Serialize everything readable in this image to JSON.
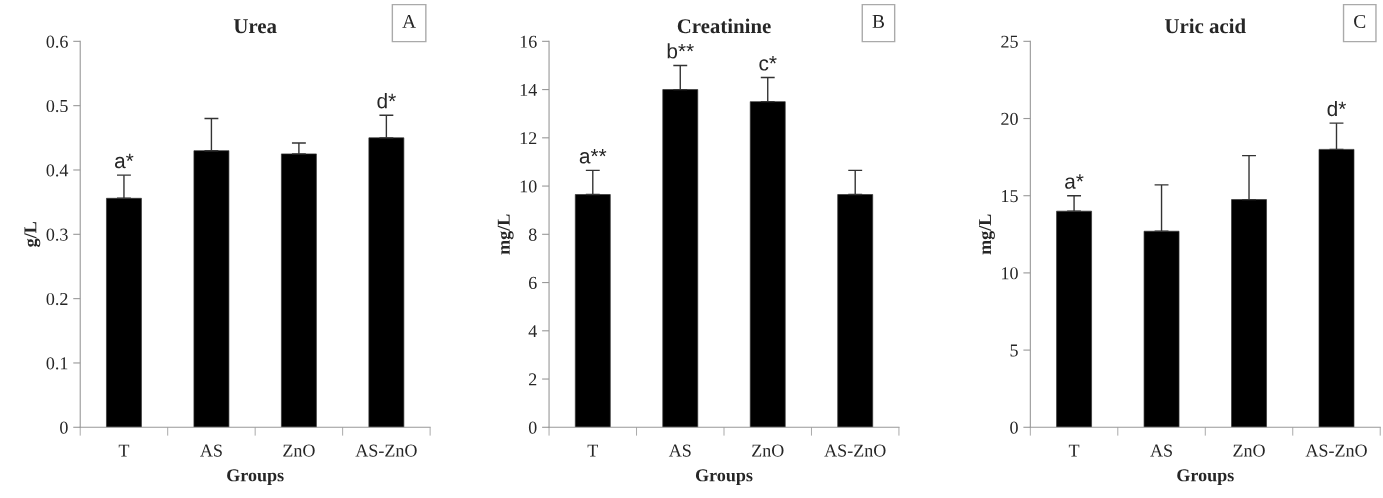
{
  "chart_data": [
    {
      "type": "bar",
      "title": "Urea",
      "xlabel": "Groups",
      "ylabel": "g/L",
      "categories": [
        "T",
        "AS",
        "ZnO",
        "AS-ZnO"
      ],
      "values": [
        0.356,
        0.43,
        0.425,
        0.45
      ],
      "color": "#000000",
      "errors": [
        [
          0.356,
          0.392
        ],
        [
          0.43,
          0.48
        ],
        [
          0.425,
          0.442
        ],
        [
          0.45,
          0.485
        ]
      ],
      "ylim": [
        0,
        0.6
      ],
      "yticks": [
        {
          "value": 0,
          "label": "0"
        },
        0.1,
        0.2,
        0.3,
        0.4,
        0.5,
        0.6
      ],
      "grid": false,
      "annotations": [
        {
          "text": "a*",
          "x": "T",
          "y": 0.392
        },
        {
          "text": "d*",
          "x": "AS-ZnO",
          "y": 0.485
        },
        "A"
      ]
    },
    {
      "type": "bar",
      "title": "Creatinine",
      "xlabel": "Groups",
      "ylabel": "mg/L",
      "categories": [
        "T",
        "AS",
        "ZnO",
        "AS-ZnO"
      ],
      "values": [
        9.65,
        14.0,
        13.5,
        9.65
      ],
      "color": "#000000",
      "errors": [
        [
          9.65,
          10.65
        ],
        [
          14.0,
          15.0
        ],
        [
          13.5,
          14.5
        ],
        [
          9.65,
          10.65
        ]
      ],
      "ylim": [
        0,
        16
      ],
      "yticks": [
        0,
        2,
        4,
        6,
        8,
        10,
        12,
        14,
        16
      ],
      "grid": false,
      "annotations": [
        {
          "text": "a**",
          "x": "T",
          "y": 10.65
        },
        {
          "text": "b**",
          "x": "AS",
          "y": 15.0
        },
        {
          "text": "c*",
          "x": "ZnO",
          "y": 14.5
        },
        "B"
      ]
    },
    {
      "type": "bar",
      "title": "Uric acid",
      "xlabel": "Groups",
      "ylabel": "mg/L",
      "categories": [
        "T",
        "AS",
        "ZnO",
        "AS-ZnO"
      ],
      "values": [
        14.0,
        12.7,
        14.75,
        18.0
      ],
      "color": "#000000",
      "errors": [
        [
          14.0,
          15.0
        ],
        [
          12.7,
          15.7
        ],
        [
          14.75,
          17.6
        ],
        [
          18.0,
          19.7
        ]
      ],
      "ylim": [
        0,
        25
      ],
      "yticks": [
        0,
        5,
        10,
        15,
        20,
        25
      ],
      "grid": false,
      "annotations": [
        {
          "text": "a*",
          "x": "T",
          "y": 15.0
        },
        {
          "text": "d*",
          "x": "AS-ZnO",
          "y": 19.7
        },
        "C"
      ]
    }
  ]
}
